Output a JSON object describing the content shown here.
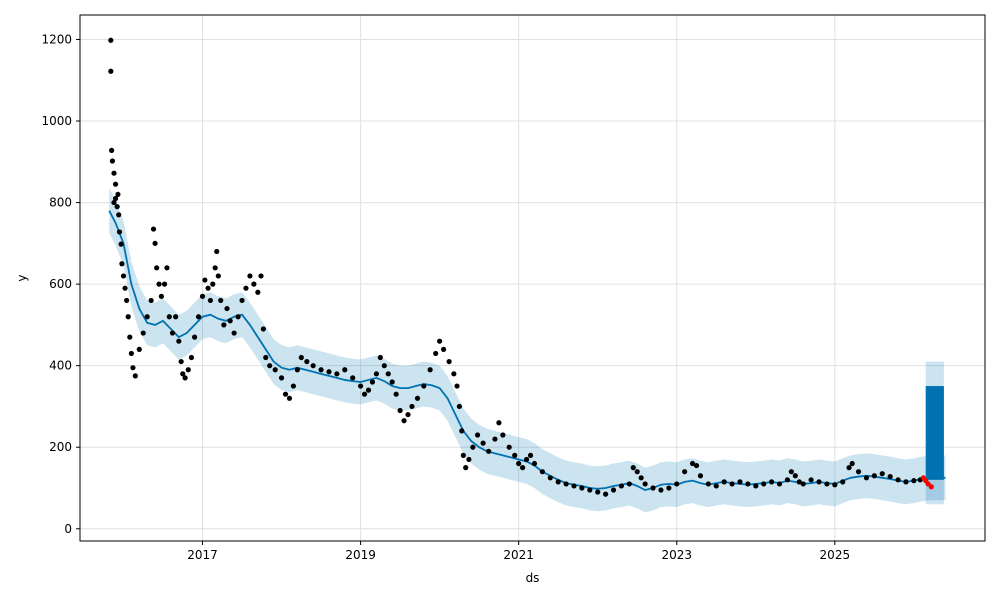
{
  "chart_data": {
    "type": "scatter",
    "xlabel": "ds",
    "ylabel": "y",
    "grid": true,
    "xlim": [
      2015.45,
      2026.9
    ],
    "ylim": [
      -30,
      1260
    ],
    "x_ticks": [
      2017,
      2019,
      2021,
      2023,
      2025
    ],
    "x_tick_labels": [
      "2017",
      "2019",
      "2021",
      "2023",
      "2025"
    ],
    "y_ticks": [
      0,
      200,
      400,
      600,
      800,
      1000,
      1200
    ],
    "y_tick_labels": [
      "0",
      "200",
      "400",
      "600",
      "800",
      "1000",
      "1200"
    ],
    "colors": {
      "observed": "#000000",
      "forecast_line": "#0072B2",
      "uncertainty_band": "#0072B2",
      "recent_points": "#ff0000",
      "grid": "#e0e0e0"
    },
    "observed_points": [
      [
        2015.84,
        1198
      ],
      [
        2015.84,
        1122
      ],
      [
        2015.85,
        928
      ],
      [
        2015.86,
        902
      ],
      [
        2015.88,
        872
      ],
      [
        2015.9,
        845
      ],
      [
        2015.88,
        800
      ],
      [
        2015.9,
        810
      ],
      [
        2015.92,
        790
      ],
      [
        2015.93,
        820
      ],
      [
        2015.94,
        770
      ],
      [
        2015.95,
        728
      ],
      [
        2015.97,
        698
      ],
      [
        2015.98,
        650
      ],
      [
        2016.0,
        620
      ],
      [
        2016.02,
        590
      ],
      [
        2016.04,
        560
      ],
      [
        2016.06,
        520
      ],
      [
        2016.08,
        470
      ],
      [
        2016.1,
        430
      ],
      [
        2016.12,
        395
      ],
      [
        2016.15,
        375
      ],
      [
        2016.2,
        440
      ],
      [
        2016.25,
        480
      ],
      [
        2016.3,
        520
      ],
      [
        2016.35,
        560
      ],
      [
        2016.38,
        735
      ],
      [
        2016.4,
        700
      ],
      [
        2016.42,
        640
      ],
      [
        2016.45,
        600
      ],
      [
        2016.48,
        570
      ],
      [
        2016.52,
        600
      ],
      [
        2016.55,
        640
      ],
      [
        2016.58,
        520
      ],
      [
        2016.62,
        480
      ],
      [
        2016.66,
        520
      ],
      [
        2016.7,
        460
      ],
      [
        2016.73,
        410
      ],
      [
        2016.75,
        380
      ],
      [
        2016.78,
        370
      ],
      [
        2016.82,
        390
      ],
      [
        2016.86,
        420
      ],
      [
        2016.9,
        470
      ],
      [
        2016.95,
        520
      ],
      [
        2017.0,
        570
      ],
      [
        2017.03,
        610
      ],
      [
        2017.07,
        590
      ],
      [
        2017.1,
        560
      ],
      [
        2017.13,
        600
      ],
      [
        2017.16,
        640
      ],
      [
        2017.18,
        680
      ],
      [
        2017.2,
        620
      ],
      [
        2017.23,
        560
      ],
      [
        2017.27,
        500
      ],
      [
        2017.31,
        540
      ],
      [
        2017.35,
        510
      ],
      [
        2017.4,
        480
      ],
      [
        2017.45,
        520
      ],
      [
        2017.5,
        560
      ],
      [
        2017.55,
        590
      ],
      [
        2017.6,
        620
      ],
      [
        2017.65,
        600
      ],
      [
        2017.7,
        580
      ],
      [
        2017.74,
        620
      ],
      [
        2017.77,
        490
      ],
      [
        2017.8,
        420
      ],
      [
        2017.85,
        400
      ],
      [
        2017.92,
        390
      ],
      [
        2018.0,
        370
      ],
      [
        2018.05,
        330
      ],
      [
        2018.1,
        320
      ],
      [
        2018.15,
        350
      ],
      [
        2018.2,
        390
      ],
      [
        2018.25,
        420
      ],
      [
        2018.32,
        410
      ],
      [
        2018.4,
        400
      ],
      [
        2018.5,
        390
      ],
      [
        2018.6,
        385
      ],
      [
        2018.7,
        380
      ],
      [
        2018.8,
        390
      ],
      [
        2018.9,
        370
      ],
      [
        2019.0,
        350
      ],
      [
        2019.05,
        330
      ],
      [
        2019.1,
        340
      ],
      [
        2019.15,
        360
      ],
      [
        2019.2,
        380
      ],
      [
        2019.25,
        420
      ],
      [
        2019.3,
        400
      ],
      [
        2019.35,
        380
      ],
      [
        2019.4,
        360
      ],
      [
        2019.45,
        330
      ],
      [
        2019.5,
        290
      ],
      [
        2019.55,
        265
      ],
      [
        2019.6,
        280
      ],
      [
        2019.65,
        300
      ],
      [
        2019.72,
        320
      ],
      [
        2019.8,
        350
      ],
      [
        2019.88,
        390
      ],
      [
        2019.95,
        430
      ],
      [
        2020.0,
        460
      ],
      [
        2020.05,
        440
      ],
      [
        2020.12,
        410
      ],
      [
        2020.18,
        380
      ],
      [
        2020.22,
        350
      ],
      [
        2020.25,
        300
      ],
      [
        2020.28,
        240
      ],
      [
        2020.3,
        180
      ],
      [
        2020.33,
        150
      ],
      [
        2020.37,
        170
      ],
      [
        2020.42,
        200
      ],
      [
        2020.48,
        230
      ],
      [
        2020.55,
        210
      ],
      [
        2020.62,
        190
      ],
      [
        2020.7,
        220
      ],
      [
        2020.75,
        260
      ],
      [
        2020.8,
        230
      ],
      [
        2020.88,
        200
      ],
      [
        2020.95,
        180
      ],
      [
        2021.0,
        160
      ],
      [
        2021.05,
        150
      ],
      [
        2021.1,
        170
      ],
      [
        2021.15,
        180
      ],
      [
        2021.2,
        160
      ],
      [
        2021.3,
        140
      ],
      [
        2021.4,
        125
      ],
      [
        2021.5,
        115
      ],
      [
        2021.6,
        110
      ],
      [
        2021.7,
        105
      ],
      [
        2021.8,
        100
      ],
      [
        2021.9,
        95
      ],
      [
        2022.0,
        90
      ],
      [
        2022.1,
        85
      ],
      [
        2022.2,
        95
      ],
      [
        2022.3,
        105
      ],
      [
        2022.4,
        110
      ],
      [
        2022.45,
        150
      ],
      [
        2022.5,
        140
      ],
      [
        2022.55,
        125
      ],
      [
        2022.6,
        110
      ],
      [
        2022.7,
        100
      ],
      [
        2022.8,
        95
      ],
      [
        2022.9,
        100
      ],
      [
        2023.0,
        110
      ],
      [
        2023.1,
        140
      ],
      [
        2023.2,
        160
      ],
      [
        2023.25,
        155
      ],
      [
        2023.3,
        130
      ],
      [
        2023.4,
        110
      ],
      [
        2023.5,
        105
      ],
      [
        2023.6,
        115
      ],
      [
        2023.7,
        110
      ],
      [
        2023.8,
        115
      ],
      [
        2023.9,
        110
      ],
      [
        2024.0,
        105
      ],
      [
        2024.1,
        110
      ],
      [
        2024.2,
        115
      ],
      [
        2024.3,
        110
      ],
      [
        2024.4,
        120
      ],
      [
        2024.45,
        140
      ],
      [
        2024.5,
        130
      ],
      [
        2024.55,
        115
      ],
      [
        2024.6,
        110
      ],
      [
        2024.7,
        120
      ],
      [
        2024.8,
        115
      ],
      [
        2024.9,
        110
      ],
      [
        2025.0,
        108
      ],
      [
        2025.1,
        115
      ],
      [
        2025.18,
        150
      ],
      [
        2025.22,
        160
      ],
      [
        2025.3,
        140
      ],
      [
        2025.4,
        125
      ],
      [
        2025.5,
        130
      ],
      [
        2025.6,
        135
      ],
      [
        2025.7,
        128
      ],
      [
        2025.8,
        120
      ],
      [
        2025.9,
        115
      ],
      [
        2026.0,
        118
      ],
      [
        2026.08,
        120
      ]
    ],
    "recent_points": [
      [
        2026.12,
        125
      ],
      [
        2026.15,
        118
      ],
      [
        2026.18,
        110
      ],
      [
        2026.22,
        103
      ]
    ],
    "forecast_line": [
      [
        2015.82,
        780
      ],
      [
        2015.9,
        750
      ],
      [
        2016.0,
        700
      ],
      [
        2016.1,
        600
      ],
      [
        2016.2,
        540
      ],
      [
        2016.3,
        505
      ],
      [
        2016.4,
        500
      ],
      [
        2016.5,
        510
      ],
      [
        2016.6,
        490
      ],
      [
        2016.7,
        470
      ],
      [
        2016.8,
        480
      ],
      [
        2016.9,
        500
      ],
      [
        2017.0,
        520
      ],
      [
        2017.1,
        525
      ],
      [
        2017.2,
        515
      ],
      [
        2017.3,
        510
      ],
      [
        2017.4,
        520
      ],
      [
        2017.5,
        525
      ],
      [
        2017.6,
        500
      ],
      [
        2017.7,
        470
      ],
      [
        2017.8,
        440
      ],
      [
        2017.9,
        410
      ],
      [
        2018.0,
        395
      ],
      [
        2018.1,
        390
      ],
      [
        2018.2,
        395
      ],
      [
        2018.3,
        390
      ],
      [
        2018.4,
        385
      ],
      [
        2018.5,
        380
      ],
      [
        2018.6,
        375
      ],
      [
        2018.7,
        370
      ],
      [
        2018.8,
        365
      ],
      [
        2018.9,
        362
      ],
      [
        2019.0,
        360
      ],
      [
        2019.1,
        365
      ],
      [
        2019.2,
        370
      ],
      [
        2019.3,
        362
      ],
      [
        2019.4,
        350
      ],
      [
        2019.5,
        345
      ],
      [
        2019.6,
        345
      ],
      [
        2019.7,
        350
      ],
      [
        2019.8,
        355
      ],
      [
        2019.9,
        352
      ],
      [
        2020.0,
        345
      ],
      [
        2020.1,
        320
      ],
      [
        2020.2,
        280
      ],
      [
        2020.3,
        240
      ],
      [
        2020.4,
        215
      ],
      [
        2020.5,
        200
      ],
      [
        2020.6,
        190
      ],
      [
        2020.7,
        185
      ],
      [
        2020.8,
        180
      ],
      [
        2020.9,
        175
      ],
      [
        2021.0,
        170
      ],
      [
        2021.1,
        165
      ],
      [
        2021.2,
        155
      ],
      [
        2021.3,
        140
      ],
      [
        2021.4,
        130
      ],
      [
        2021.5,
        120
      ],
      [
        2021.6,
        112
      ],
      [
        2021.7,
        108
      ],
      [
        2021.8,
        105
      ],
      [
        2021.9,
        100
      ],
      [
        2022.0,
        98
      ],
      [
        2022.1,
        100
      ],
      [
        2022.2,
        105
      ],
      [
        2022.3,
        108
      ],
      [
        2022.4,
        112
      ],
      [
        2022.5,
        105
      ],
      [
        2022.6,
        95
      ],
      [
        2022.7,
        100
      ],
      [
        2022.8,
        108
      ],
      [
        2022.9,
        110
      ],
      [
        2023.0,
        108
      ],
      [
        2023.1,
        115
      ],
      [
        2023.2,
        118
      ],
      [
        2023.3,
        112
      ],
      [
        2023.4,
        108
      ],
      [
        2023.5,
        112
      ],
      [
        2023.6,
        115
      ],
      [
        2023.7,
        112
      ],
      [
        2023.8,
        110
      ],
      [
        2023.9,
        108
      ],
      [
        2024.0,
        110
      ],
      [
        2024.1,
        112
      ],
      [
        2024.2,
        115
      ],
      [
        2024.3,
        112
      ],
      [
        2024.4,
        118
      ],
      [
        2024.5,
        115
      ],
      [
        2024.6,
        110
      ],
      [
        2024.7,
        112
      ],
      [
        2024.8,
        115
      ],
      [
        2024.9,
        112
      ],
      [
        2025.0,
        110
      ],
      [
        2025.1,
        118
      ],
      [
        2025.2,
        125
      ],
      [
        2025.3,
        128
      ],
      [
        2025.4,
        130
      ],
      [
        2025.5,
        128
      ],
      [
        2025.6,
        125
      ],
      [
        2025.7,
        122
      ],
      [
        2025.8,
        118
      ],
      [
        2025.9,
        115
      ],
      [
        2026.0,
        118
      ],
      [
        2026.1,
        122
      ],
      [
        2026.2,
        125
      ],
      [
        2026.3,
        125
      ],
      [
        2026.4,
        125
      ]
    ],
    "uncertainty_band_halfwidth": 55,
    "forecast_range": {
      "x_start": 2026.15,
      "x_end": 2026.38,
      "lower": 120,
      "upper": 350,
      "band_lower": 60,
      "band_upper": 410
    }
  }
}
